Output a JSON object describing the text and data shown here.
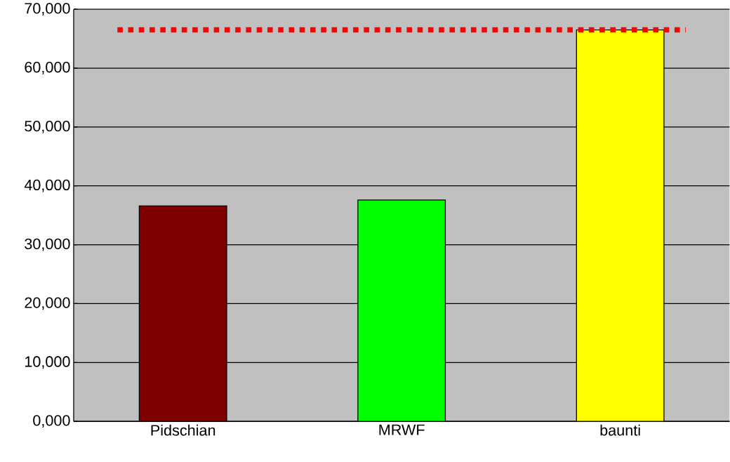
{
  "chart_data": {
    "type": "bar",
    "categories": [
      "Pidschian",
      "MRWF",
      "baunti"
    ],
    "values": [
      36600,
      37600,
      66500
    ],
    "colors": [
      "#800000",
      "#00ff00",
      "#ffff00"
    ],
    "ylim": [
      0,
      70000
    ],
    "yticks": [
      {
        "value": 0,
        "label": "0,000"
      },
      {
        "value": 10000,
        "label": "10,000"
      },
      {
        "value": 20000,
        "label": "20,000"
      },
      {
        "value": 30000,
        "label": "30,000"
      },
      {
        "value": 40000,
        "label": "40,000"
      },
      {
        "value": 50000,
        "label": "50,000"
      },
      {
        "value": 60000,
        "label": "60,000"
      },
      {
        "value": 70000,
        "label": "70,000"
      }
    ],
    "grid": "y",
    "ref_lines": [
      {
        "axis": "y",
        "value": 66500,
        "color": "#ff0000",
        "line_style": "dotted"
      }
    ]
  }
}
